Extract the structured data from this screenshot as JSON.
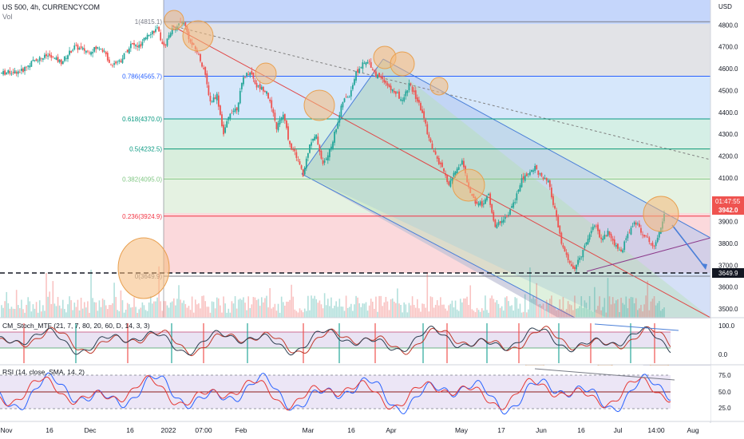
{
  "header": {
    "symbol_line": "US 500, 4h, CURRENCYCOM",
    "vol_label": "Vol"
  },
  "indicators": {
    "cm_label": "CM_Stoch_MTF (21, 7, 7, 80, 20, 60, D, 14, 3, 3)",
    "rsi_label": "RSI (14, close, SMA, 14, 2)"
  },
  "colors": {
    "up": "#26a69a",
    "down": "#ef5350",
    "channel_blue": "#4a7fd8",
    "circle_fill": "#f5b97a",
    "circle_stroke": "#e8a050",
    "price_line": "#4a7fd8",
    "current_badge": "#ef5350"
  },
  "chart_data": {
    "type": "candlestick",
    "currency_label": "USD",
    "y_ticks": [
      4800,
      4700,
      4600,
      4500,
      4400,
      4300,
      4200,
      4100,
      3900,
      3800,
      3700,
      3600,
      3500
    ],
    "y_range": [
      3460,
      4900
    ],
    "current_price": "3942.0",
    "current_time": "01:47:55",
    "dashed_level": "3649.9",
    "x_ticks": [
      "Nov",
      "16",
      "Dec",
      "16",
      "2022",
      "07:00",
      "Feb",
      "Mar",
      "16",
      "Apr",
      "May",
      "17",
      "Jun",
      "16",
      "Jul",
      "14:00",
      "Aug"
    ],
    "fib_levels": [
      {
        "label": "1(4815.1)",
        "value": 4815.1,
        "color": "#787b86"
      },
      {
        "label": "0.786(4565.7)",
        "value": 4565.7,
        "color": "#2962ff"
      },
      {
        "label": "0.618(4370.0)",
        "value": 4370.0,
        "color": "#089981"
      },
      {
        "label": "0.5(4232.5)",
        "value": 4232.5,
        "color": "#089981"
      },
      {
        "label": "0.382(4095.0)",
        "value": 4095.0,
        "color": "#81c784"
      },
      {
        "label": "0.236(3924.9)",
        "value": 3924.9,
        "color": "#f23645"
      },
      {
        "label": "0(3649.9)",
        "value": 3649.9,
        "color": "#787b86"
      }
    ],
    "price_path": [
      [
        0,
        4580
      ],
      [
        6,
        4590
      ],
      [
        10,
        4640
      ],
      [
        14,
        4660
      ],
      [
        18,
        4630
      ],
      [
        22,
        4700
      ],
      [
        26,
        4680
      ],
      [
        30,
        4700
      ],
      [
        33,
        4620
      ],
      [
        36,
        4640
      ],
      [
        39,
        4710
      ],
      [
        42,
        4700
      ],
      [
        44,
        4760
      ],
      [
        47,
        4780
      ],
      [
        49,
        4700
      ],
      [
        51,
        4770
      ],
      [
        53,
        4800
      ],
      [
        55,
        4815
      ],
      [
        57,
        4720
      ],
      [
        59,
        4680
      ],
      [
        61,
        4600
      ],
      [
        63,
        4450
      ],
      [
        65,
        4480
      ],
      [
        67,
        4300
      ],
      [
        69,
        4400
      ],
      [
        71,
        4420
      ],
      [
        73,
        4560
      ],
      [
        75,
        4590
      ],
      [
        77,
        4520
      ],
      [
        80,
        4500
      ],
      [
        83,
        4330
      ],
      [
        85,
        4390
      ],
      [
        87,
        4250
      ],
      [
        89,
        4200
      ],
      [
        91,
        4110
      ],
      [
        93,
        4260
      ],
      [
        95,
        4290
      ],
      [
        97,
        4160
      ],
      [
        99,
        4220
      ],
      [
        101,
        4330
      ],
      [
        103,
        4450
      ],
      [
        105,
        4480
      ],
      [
        107,
        4580
      ],
      [
        109,
        4620
      ],
      [
        111,
        4630
      ],
      [
        113,
        4570
      ],
      [
        115,
        4560
      ],
      [
        117,
        4510
      ],
      [
        119,
        4490
      ],
      [
        121,
        4450
      ],
      [
        123,
        4530
      ],
      [
        125,
        4470
      ],
      [
        127,
        4400
      ],
      [
        129,
        4280
      ],
      [
        131,
        4200
      ],
      [
        133,
        4140
      ],
      [
        135,
        4070
      ],
      [
        137,
        4130
      ],
      [
        139,
        4180
      ],
      [
        141,
        4050
      ],
      [
        143,
        3990
      ],
      [
        145,
        3980
      ],
      [
        147,
        4020
      ],
      [
        149,
        3870
      ],
      [
        151,
        3910
      ],
      [
        153,
        3930
      ],
      [
        155,
        4000
      ],
      [
        157,
        4090
      ],
      [
        159,
        4120
      ],
      [
        161,
        4150
      ],
      [
        163,
        4100
      ],
      [
        165,
        4080
      ],
      [
        167,
        3950
      ],
      [
        169,
        3800
      ],
      [
        171,
        3720
      ],
      [
        173,
        3680
      ],
      [
        175,
        3750
      ],
      [
        177,
        3830
      ],
      [
        179,
        3890
      ],
      [
        181,
        3820
      ],
      [
        183,
        3850
      ],
      [
        185,
        3800
      ],
      [
        187,
        3760
      ],
      [
        189,
        3840
      ],
      [
        191,
        3900
      ],
      [
        193,
        3860
      ],
      [
        195,
        3820
      ],
      [
        197,
        3790
      ],
      [
        199,
        3880
      ],
      [
        200,
        3942
      ]
    ],
    "volume_baseline": 395,
    "cm_stoch_ticks": [
      100.0,
      0.0
    ],
    "rsi_ticks": [
      75.0,
      50.0,
      25.0
    ]
  }
}
